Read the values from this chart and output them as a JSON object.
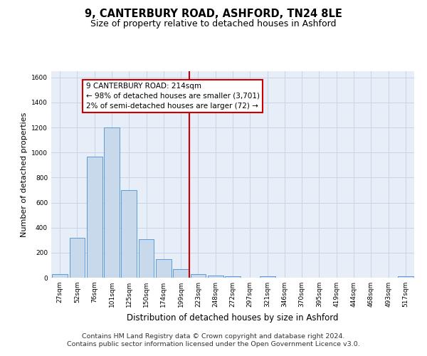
{
  "title": "9, CANTERBURY ROAD, ASHFORD, TN24 8LE",
  "subtitle": "Size of property relative to detached houses in Ashford",
  "xlabel": "Distribution of detached houses by size in Ashford",
  "ylabel": "Number of detached properties",
  "categories": [
    "27sqm",
    "52sqm",
    "76sqm",
    "101sqm",
    "125sqm",
    "150sqm",
    "174sqm",
    "199sqm",
    "223sqm",
    "248sqm",
    "272sqm",
    "297sqm",
    "321sqm",
    "346sqm",
    "370sqm",
    "395sqm",
    "419sqm",
    "444sqm",
    "468sqm",
    "493sqm",
    "517sqm"
  ],
  "values": [
    30,
    320,
    970,
    1200,
    700,
    310,
    150,
    70,
    30,
    15,
    10,
    0,
    10,
    0,
    0,
    0,
    0,
    0,
    0,
    0,
    10
  ],
  "bar_color": "#c9d9ec",
  "bar_edge_color": "#5b9bd5",
  "vline_x_index": 8,
  "vline_color": "#cc0000",
  "annotation_text": "9 CANTERBURY ROAD: 214sqm\n← 98% of detached houses are smaller (3,701)\n2% of semi-detached houses are larger (72) →",
  "annotation_box_color": "#ffffff",
  "annotation_box_edge_color": "#cc0000",
  "ylim": [
    0,
    1650
  ],
  "yticks": [
    0,
    200,
    400,
    600,
    800,
    1000,
    1200,
    1400,
    1600
  ],
  "grid_color": "#c8d4e8",
  "background_color": "#e8eef8",
  "footer_text": "Contains HM Land Registry data © Crown copyright and database right 2024.\nContains public sector information licensed under the Open Government Licence v3.0.",
  "title_fontsize": 10.5,
  "subtitle_fontsize": 9,
  "annotation_fontsize": 7.5,
  "footer_fontsize": 6.8,
  "ylabel_fontsize": 8,
  "xlabel_fontsize": 8.5,
  "tick_fontsize": 6.5
}
